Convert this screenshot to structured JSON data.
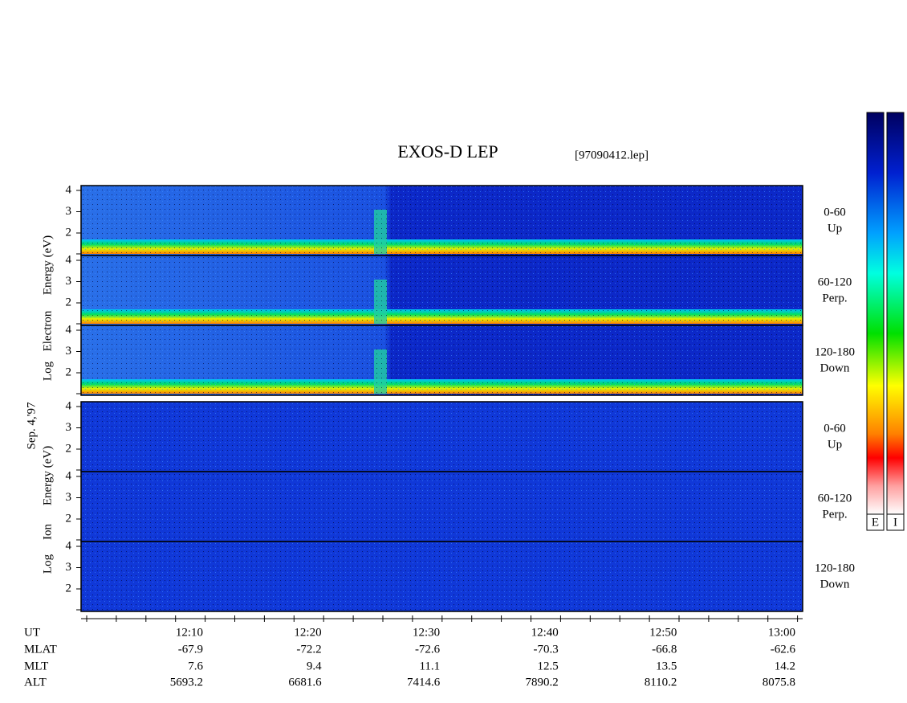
{
  "header": {
    "title": "EXOS-D LEP",
    "file": "[97090412.lep]"
  },
  "date": "Sep. 4,'97",
  "energy_ticks": [
    4,
    3,
    2
  ],
  "electron": {
    "axis_label": [
      "Log",
      "Electron",
      "Energy (eV)"
    ],
    "panels": [
      {
        "angle": "0-60",
        "direction": "Up"
      },
      {
        "angle": "60-120",
        "direction": "Perp."
      },
      {
        "angle": "120-180",
        "direction": "Down"
      }
    ]
  },
  "ion": {
    "axis_label": [
      "Log",
      "Ion",
      "Energy (eV)"
    ],
    "panels": [
      {
        "angle": "0-60",
        "direction": "Up"
      },
      {
        "angle": "60-120",
        "direction": "Perp."
      },
      {
        "angle": "120-180",
        "direction": "Down"
      }
    ]
  },
  "orbit": {
    "labels": [
      "UT",
      "MLAT",
      "MLT",
      "ALT"
    ],
    "columns": [
      [
        "12:10",
        "-67.9",
        "7.6",
        "5693.2"
      ],
      [
        "12:20",
        "-72.2",
        "9.4",
        "6681.6"
      ],
      [
        "12:30",
        "-72.6",
        "11.1",
        "7414.6"
      ],
      [
        "12:40",
        "-70.3",
        "12.5",
        "7890.2"
      ],
      [
        "12:50",
        "-66.8",
        "13.5",
        "8110.2"
      ],
      [
        "13:00",
        "-62.6",
        "14.2",
        "8075.8"
      ]
    ]
  },
  "colorbars": [
    "E",
    "I"
  ]
}
